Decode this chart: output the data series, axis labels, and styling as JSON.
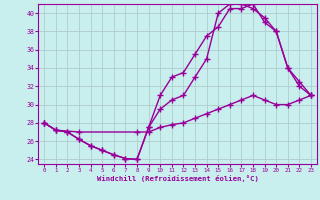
{
  "xlabel": "Windchill (Refroidissement éolien,°C)",
  "bg_color": "#c8eeee",
  "line_color": "#990099",
  "grid_color": "#b0cccc",
  "xlim": [
    -0.5,
    23.5
  ],
  "ylim": [
    23.5,
    41.0
  ],
  "yticks": [
    24,
    26,
    28,
    30,
    32,
    34,
    36,
    38,
    40
  ],
  "xticks": [
    0,
    1,
    2,
    3,
    4,
    5,
    6,
    7,
    8,
    9,
    10,
    11,
    12,
    13,
    14,
    15,
    16,
    17,
    18,
    19,
    20,
    21,
    22,
    23
  ],
  "curve1_x": [
    0,
    1,
    2,
    3,
    4,
    5,
    6,
    7,
    8,
    9,
    10,
    11,
    12,
    13,
    14,
    15,
    16,
    17,
    18,
    19,
    20,
    21,
    22,
    23
  ],
  "curve1_y": [
    28.0,
    27.2,
    27.0,
    26.2,
    25.5,
    25.0,
    24.5,
    24.1,
    24.0,
    27.5,
    31.0,
    33.0,
    33.5,
    35.5,
    37.5,
    38.5,
    40.5,
    40.5,
    41.0,
    39.0,
    38.0,
    34.0,
    32.0,
    31.0
  ],
  "curve2_x": [
    0,
    1,
    2,
    3,
    4,
    5,
    6,
    7,
    8,
    9,
    10,
    11,
    12,
    13,
    14,
    15,
    16,
    17,
    18,
    19,
    20,
    21,
    22,
    23
  ],
  "curve2_y": [
    28.0,
    27.2,
    27.0,
    26.2,
    25.5,
    25.0,
    24.5,
    24.1,
    24.0,
    27.5,
    29.5,
    30.5,
    31.0,
    33.0,
    35.0,
    40.0,
    41.0,
    41.0,
    40.5,
    39.5,
    38.0,
    34.0,
    32.5,
    31.0
  ],
  "curve3_x": [
    0,
    1,
    3,
    8,
    9,
    10,
    11,
    12,
    13,
    14,
    15,
    16,
    17,
    18,
    19,
    20,
    21,
    22,
    23
  ],
  "curve3_y": [
    28.0,
    27.2,
    27.0,
    27.0,
    27.0,
    27.5,
    27.8,
    28.0,
    28.5,
    29.0,
    29.5,
    30.0,
    30.5,
    31.0,
    30.5,
    30.0,
    30.0,
    30.5,
    31.0
  ],
  "marker": "+",
  "markersize": 4,
  "linewidth": 1.0
}
